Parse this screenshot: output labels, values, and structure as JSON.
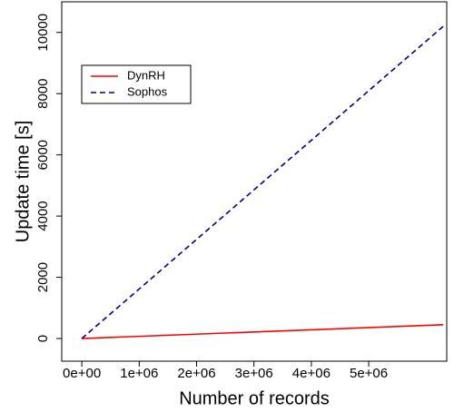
{
  "chart_data": {
    "type": "line",
    "x_label": "Number of records",
    "y_label": "Update time [s]",
    "x": [
      0,
      6300000
    ],
    "series": [
      {
        "name": "DynRH",
        "color": "#ff0000",
        "dash": "solid",
        "values": [
          0,
          450
        ]
      },
      {
        "name": "Sophos",
        "color": "#000080",
        "dash": "dashed",
        "values": [
          0,
          10200
        ]
      }
    ],
    "xlim": [
      -350000,
      6360000
    ],
    "ylim": [
      -740,
      11000
    ],
    "xticks": [
      {
        "value": 0,
        "label": "0e+00"
      },
      {
        "value": 1000000,
        "label": "1e+06"
      },
      {
        "value": 2000000,
        "label": "2e+06"
      },
      {
        "value": 3000000,
        "label": "3e+06"
      },
      {
        "value": 4000000,
        "label": "4e+06"
      },
      {
        "value": 5000000,
        "label": "5e+06"
      }
    ],
    "yticks": [
      0,
      2000,
      4000,
      6000,
      8000,
      10000
    ],
    "legend": "top-left",
    "grid": false
  }
}
